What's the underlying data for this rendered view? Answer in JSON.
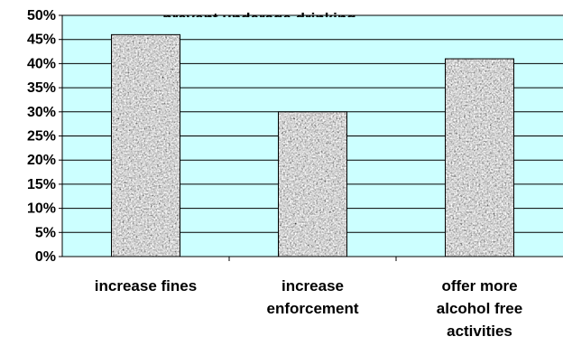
{
  "chart_data": {
    "type": "bar",
    "title": "... prevent underage drinking",
    "xlabel": "",
    "ylabel": "",
    "categories": [
      [
        "increase fines"
      ],
      [
        "increase",
        "enforcement"
      ],
      [
        "offer more",
        "alcohol free",
        "activities"
      ]
    ],
    "values": [
      0.46,
      0.3,
      0.41
    ],
    "ylim": [
      0,
      0.5
    ],
    "yticks": [
      "0%",
      "5%",
      "10%",
      "15%",
      "20%",
      "25%",
      "30%",
      "35%",
      "40%",
      "45%",
      "50%"
    ],
    "grid": true,
    "legend": "none",
    "colors": {
      "plot_background": "#ccffff",
      "bar_fill": "#a8a8a8",
      "bar_speckle_dark": "#404040",
      "bar_speckle_light": "#f0f0f0",
      "gridline": "#000000"
    },
    "bar_pattern": "granite-texture"
  }
}
